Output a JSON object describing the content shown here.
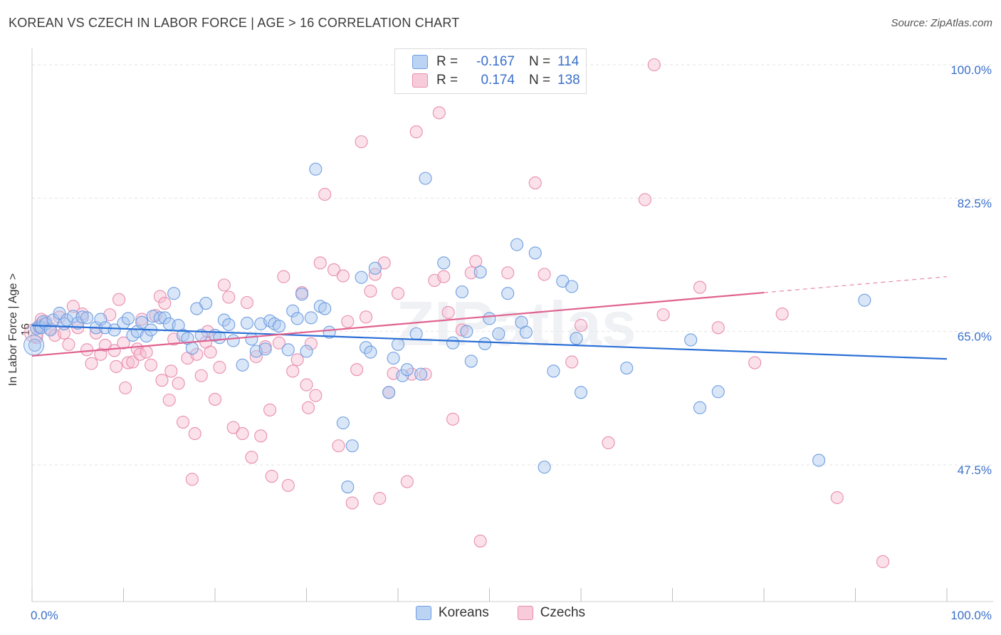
{
  "title": "KOREAN VS CZECH IN LABOR FORCE | AGE > 16 CORRELATION CHART",
  "source": "Source: ZipAtlas.com",
  "watermark": "ZIPatlas",
  "legend": {
    "rows": [
      {
        "r_label": "R =",
        "r_value": "-0.167",
        "n_label": "N =",
        "n_value": "114"
      },
      {
        "r_label": "R =",
        "r_value": "0.174",
        "n_label": "N =",
        "n_value": "138"
      }
    ]
  },
  "bottom_legend": {
    "koreans": "Koreans",
    "czechs": "Czechs"
  },
  "colors": {
    "blue_fill": "#aac8f0",
    "blue_stroke": "#6f9ee0",
    "blue_line": "#2a6fd6",
    "pink_fill": "#f6bcd0",
    "pink_stroke": "#e98eae",
    "pink_line": "#e0628f",
    "tick_text": "#3a6fc9"
  },
  "chart_data": {
    "type": "scatter",
    "title": "KOREAN VS CZECH IN LABOR FORCE | AGE > 16 CORRELATION CHART",
    "xlabel": "",
    "ylabel": "In Labor Force | Age > 16",
    "xlim": [
      0,
      100
    ],
    "ylim": [
      30,
      102
    ],
    "x_ticks": [
      "0.0%",
      "100.0%"
    ],
    "y_ticks": [
      {
        "value": 100.0,
        "label": "100.0%"
      },
      {
        "value": 82.5,
        "label": "82.5%"
      },
      {
        "value": 65.0,
        "label": "65.0%"
      },
      {
        "value": 47.5,
        "label": "47.5%"
      }
    ],
    "grid": true,
    "legend_position": "top-center",
    "series": [
      {
        "name": "Koreans",
        "color": "#aac8f0",
        "trend": {
          "x": [
            0,
            100
          ],
          "y": [
            65.8,
            61.4
          ]
        },
        "points": [
          [
            0.3,
            63.2
          ],
          [
            0.5,
            65.4
          ],
          [
            0.8,
            65.6
          ],
          [
            1,
            65.5
          ],
          [
            1.2,
            66.3
          ],
          [
            1.5,
            66.0
          ],
          [
            2,
            65.2
          ],
          [
            2.3,
            66.5
          ],
          [
            3,
            67.4
          ],
          [
            3.5,
            66.0
          ],
          [
            3.8,
            66.5
          ],
          [
            4.5,
            67.0
          ],
          [
            5,
            66.1
          ],
          [
            5.5,
            66.9
          ],
          [
            6,
            66.8
          ],
          [
            7,
            65.5
          ],
          [
            7.5,
            66.6
          ],
          [
            8,
            65.5
          ],
          [
            9,
            65.2
          ],
          [
            10,
            66.1
          ],
          [
            10.5,
            66.7
          ],
          [
            11,
            64.5
          ],
          [
            11.5,
            65.0
          ],
          [
            12,
            66.2
          ],
          [
            12.5,
            64.4
          ],
          [
            13,
            65.2
          ],
          [
            13.2,
            67.0
          ],
          [
            14,
            66.8
          ],
          [
            14.5,
            66.8
          ],
          [
            15,
            66.0
          ],
          [
            15.5,
            70.0
          ],
          [
            16,
            65.8
          ],
          [
            16.5,
            64.5
          ],
          [
            17,
            64.1
          ],
          [
            17.5,
            62.8
          ],
          [
            18,
            68.0
          ],
          [
            18.5,
            64.5
          ],
          [
            19,
            68.7
          ],
          [
            20,
            64.5
          ],
          [
            20.5,
            64.2
          ],
          [
            21,
            66.5
          ],
          [
            21.5,
            65.9
          ],
          [
            22,
            63.8
          ],
          [
            23,
            60.6
          ],
          [
            23.5,
            66.1
          ],
          [
            24,
            64.0
          ],
          [
            24.5,
            62.4
          ],
          [
            25,
            66.0
          ],
          [
            25.5,
            62.7
          ],
          [
            26,
            66.4
          ],
          [
            26.5,
            66.0
          ],
          [
            27,
            65.7
          ],
          [
            28,
            62.6
          ],
          [
            28.5,
            67.7
          ],
          [
            29,
            66.7
          ],
          [
            29.5,
            69.9
          ],
          [
            30,
            62.4
          ],
          [
            30.5,
            66.8
          ],
          [
            31,
            86.3
          ],
          [
            31.5,
            68.3
          ],
          [
            32,
            68.0
          ],
          [
            32.5,
            64.9
          ],
          [
            34,
            53.0
          ],
          [
            34.5,
            44.6
          ],
          [
            35,
            50.0
          ],
          [
            36,
            72.1
          ],
          [
            36.5,
            62.9
          ],
          [
            37,
            62.3
          ],
          [
            37.5,
            73.3
          ],
          [
            39,
            57.0
          ],
          [
            39.5,
            61.5
          ],
          [
            40,
            63.3
          ],
          [
            40.5,
            59.2
          ],
          [
            41,
            60.0
          ],
          [
            42,
            64.7
          ],
          [
            42.5,
            59.4
          ],
          [
            43,
            85.1
          ],
          [
            45,
            74.0
          ],
          [
            46,
            63.5
          ],
          [
            47,
            70.2
          ],
          [
            47.5,
            65.0
          ],
          [
            48,
            61.1
          ],
          [
            49,
            72.8
          ],
          [
            49.5,
            63.4
          ],
          [
            50,
            66.7
          ],
          [
            51,
            64.7
          ],
          [
            52,
            70.0
          ],
          [
            53,
            76.4
          ],
          [
            53.5,
            66.2
          ],
          [
            54,
            64.9
          ],
          [
            55,
            75.3
          ],
          [
            56,
            47.2
          ],
          [
            57,
            59.8
          ],
          [
            58,
            71.6
          ],
          [
            59,
            70.9
          ],
          [
            59.5,
            64.1
          ],
          [
            60,
            57.0
          ],
          [
            65,
            60.2
          ],
          [
            72,
            63.9
          ],
          [
            73,
            55.0
          ],
          [
            75,
            57.1
          ],
          [
            86,
            48.1
          ],
          [
            91,
            69.1
          ]
        ]
      },
      {
        "name": "Czechs",
        "color": "#f6bcd0",
        "trend": {
          "x": [
            0,
            80
          ],
          "y": [
            61.8,
            70.1
          ]
        },
        "trend_dashed": {
          "x": [
            80,
            100
          ],
          "y": [
            70.1,
            72.2
          ]
        },
        "points": [
          [
            0.5,
            64.2
          ],
          [
            0.8,
            65.8
          ],
          [
            1,
            66.6
          ],
          [
            1.5,
            66.3
          ],
          [
            2,
            65.4
          ],
          [
            2.5,
            64.5
          ],
          [
            3,
            66.9
          ],
          [
            3.5,
            64.8
          ],
          [
            4,
            63.3
          ],
          [
            4.5,
            68.3
          ],
          [
            5,
            65.5
          ],
          [
            5.5,
            67.3
          ],
          [
            6,
            62.6
          ],
          [
            6.5,
            60.8
          ],
          [
            7,
            64.8
          ],
          [
            7.5,
            62.0
          ],
          [
            8,
            63.2
          ],
          [
            8.5,
            67.2
          ],
          [
            9,
            62.5
          ],
          [
            9.2,
            60.4
          ],
          [
            9.5,
            69.2
          ],
          [
            10,
            63.5
          ],
          [
            10.2,
            57.6
          ],
          [
            10.5,
            60.9
          ],
          [
            11,
            61.0
          ],
          [
            11.5,
            62.7
          ],
          [
            11.8,
            62.0
          ],
          [
            12,
            66.6
          ],
          [
            12.5,
            62.3
          ],
          [
            13,
            60.6
          ],
          [
            13.5,
            67.1
          ],
          [
            14,
            69.6
          ],
          [
            14.2,
            58.6
          ],
          [
            14.5,
            68.7
          ],
          [
            15,
            56.0
          ],
          [
            15.2,
            59.8
          ],
          [
            15.5,
            64.0
          ],
          [
            16,
            58.2
          ],
          [
            16.5,
            53.1
          ],
          [
            17,
            61.5
          ],
          [
            17.5,
            45.6
          ],
          [
            17.8,
            51.6
          ],
          [
            18,
            62.0
          ],
          [
            18.5,
            59.2
          ],
          [
            19,
            63.6
          ],
          [
            19.2,
            65.0
          ],
          [
            19.5,
            62.3
          ],
          [
            20,
            56.1
          ],
          [
            20.5,
            60.3
          ],
          [
            21,
            71.1
          ],
          [
            21.5,
            69.5
          ],
          [
            22,
            52.4
          ],
          [
            23,
            51.6
          ],
          [
            23.5,
            68.8
          ],
          [
            24,
            48.5
          ],
          [
            24.5,
            61.7
          ],
          [
            25,
            51.3
          ],
          [
            25.5,
            63.0
          ],
          [
            26,
            54.7
          ],
          [
            26.2,
            46.0
          ],
          [
            27,
            63.5
          ],
          [
            27.5,
            72.2
          ],
          [
            28,
            44.8
          ],
          [
            28.5,
            59.8
          ],
          [
            29,
            61.3
          ],
          [
            29.5,
            70.1
          ],
          [
            30,
            58.0
          ],
          [
            30.2,
            55.0
          ],
          [
            30.5,
            63.4
          ],
          [
            31,
            56.6
          ],
          [
            31.5,
            74.0
          ],
          [
            32,
            83.0
          ],
          [
            33,
            73.1
          ],
          [
            33.5,
            50.0
          ],
          [
            34,
            72.3
          ],
          [
            34.5,
            66.3
          ],
          [
            35,
            42.5
          ],
          [
            35.5,
            60.0
          ],
          [
            36,
            89.9
          ],
          [
            36.5,
            66.9
          ],
          [
            37,
            70.3
          ],
          [
            37.5,
            72.5
          ],
          [
            38,
            43.1
          ],
          [
            38.5,
            74.0
          ],
          [
            39,
            57.0
          ],
          [
            39.5,
            59.5
          ],
          [
            40,
            70.0
          ],
          [
            41,
            45.3
          ],
          [
            41.5,
            59.4
          ],
          [
            42,
            91.2
          ],
          [
            43,
            59.4
          ],
          [
            44,
            71.7
          ],
          [
            44.5,
            93.7
          ],
          [
            45,
            72.2
          ],
          [
            45.5,
            67.5
          ],
          [
            46,
            53.5
          ],
          [
            47,
            65.2
          ],
          [
            48,
            72.7
          ],
          [
            48.5,
            74.2
          ],
          [
            49,
            37.5
          ],
          [
            52,
            72.7
          ],
          [
            55,
            84.5
          ],
          [
            56,
            72.5
          ],
          [
            59,
            61.0
          ],
          [
            60,
            65.8
          ],
          [
            63,
            50.4
          ],
          [
            67,
            82.3
          ],
          [
            68,
            100.0
          ],
          [
            69,
            67.2
          ],
          [
            73,
            70.8
          ],
          [
            75,
            65.5
          ],
          [
            79,
            60.9
          ],
          [
            82,
            67.3
          ],
          [
            88,
            43.2
          ],
          [
            93,
            34.8
          ]
        ]
      }
    ]
  }
}
